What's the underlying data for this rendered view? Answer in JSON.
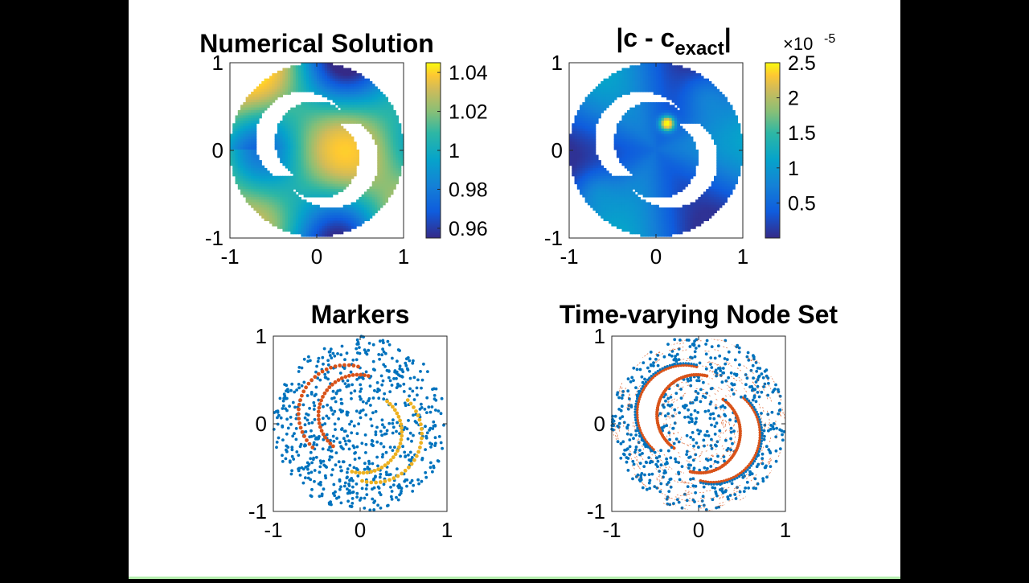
{
  "chart_data": [
    {
      "type": "heatmap",
      "title": "Numerical Solution",
      "x_ticks": [
        -1,
        0,
        1
      ],
      "y_ticks": [
        -1,
        0,
        1
      ],
      "xlim": [
        -1,
        1
      ],
      "ylim": [
        -1,
        1
      ],
      "domain": "disk of radius 1 with two crescent-shaped holes",
      "colormap": "parula",
      "colorbar": {
        "ticks": [
          "1.04",
          "1.02",
          "1",
          "0.98",
          "0.96"
        ],
        "range": [
          0.955,
          1.045
        ]
      },
      "value_range": [
        0.96,
        1.04
      ]
    },
    {
      "type": "heatmap",
      "title": "|c - c",
      "title_sub": "exact",
      "title_end": "|",
      "x_ticks": [
        -1,
        0,
        1
      ],
      "y_ticks": [
        -1,
        0,
        1
      ],
      "xlim": [
        -1,
        1
      ],
      "ylim": [
        -1,
        1
      ],
      "colormap": "parula",
      "colorbar": {
        "ticks": [
          "2.5",
          "2",
          "1.5",
          "1",
          "0.5"
        ],
        "range": [
          0.0,
          2.5
        ],
        "multiplier_base": "×10",
        "multiplier_exp": "-5"
      },
      "value_range": [
        0.0,
        2.5e-05
      ]
    },
    {
      "type": "scatter",
      "title": "Markers",
      "x_ticks": [
        -1,
        0,
        1
      ],
      "y_ticks": [
        -1,
        0,
        1
      ],
      "xlim": [
        -1,
        1
      ],
      "ylim": [
        -1,
        1
      ],
      "series_colors": [
        "#0072BD",
        "#D95319",
        "#EDB120"
      ],
      "description_series": [
        "background nodes",
        "marker points on boundary of crescent 1",
        "marker points on boundary of crescent 2"
      ]
    },
    {
      "type": "scatter",
      "title": "Time-varying Node Set",
      "x_ticks": [
        -1,
        0,
        1
      ],
      "y_ticks": [
        -1,
        0,
        1
      ],
      "xlim": [
        -1,
        1
      ],
      "ylim": [
        -1,
        1
      ],
      "series_colors": [
        "#0072BD",
        "#D95319"
      ],
      "description_series": [
        "interior nodes",
        "boundary nodes / node trajectories"
      ]
    }
  ]
}
